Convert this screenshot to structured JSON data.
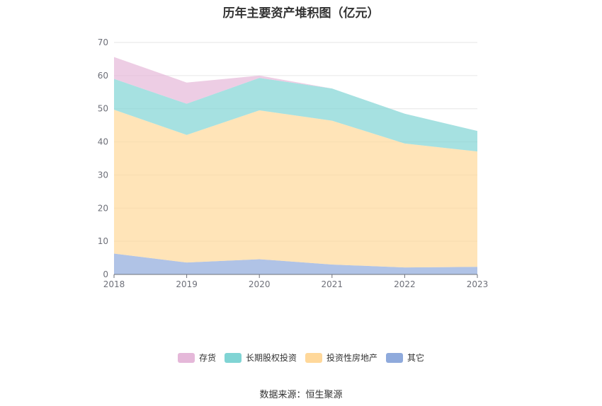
{
  "chart_data": {
    "type": "area",
    "title": "历年主要资产堆积图（亿元）",
    "categories": [
      "2018",
      "2019",
      "2020",
      "2021",
      "2022",
      "2023"
    ],
    "ylim": [
      0,
      70
    ],
    "yticks": [
      0,
      10,
      20,
      30,
      40,
      50,
      60,
      70
    ],
    "stacked": true,
    "grid": true,
    "legend_position": "bottom",
    "series": [
      {
        "name": "其它",
        "color": "#8faadc",
        "values": [
          6.3,
          3.6,
          4.6,
          3.0,
          2.1,
          2.3
        ]
      },
      {
        "name": "投资性房地产",
        "color": "#ffd89a",
        "values": [
          43.4,
          38.5,
          44.9,
          43.4,
          37.4,
          34.8
        ]
      },
      {
        "name": "长期股权投资",
        "color": "#80d4d4",
        "values": [
          9.3,
          9.4,
          9.8,
          9.7,
          9.0,
          6.2
        ]
      },
      {
        "name": "存货",
        "color": "#e5b8d9",
        "values": [
          6.6,
          6.4,
          0.7,
          0.0,
          0.0,
          0.0
        ]
      }
    ],
    "legend_order": [
      "存货",
      "长期股权投资",
      "投资性房地产",
      "其它"
    ],
    "source": "数据来源：恒生聚源"
  }
}
